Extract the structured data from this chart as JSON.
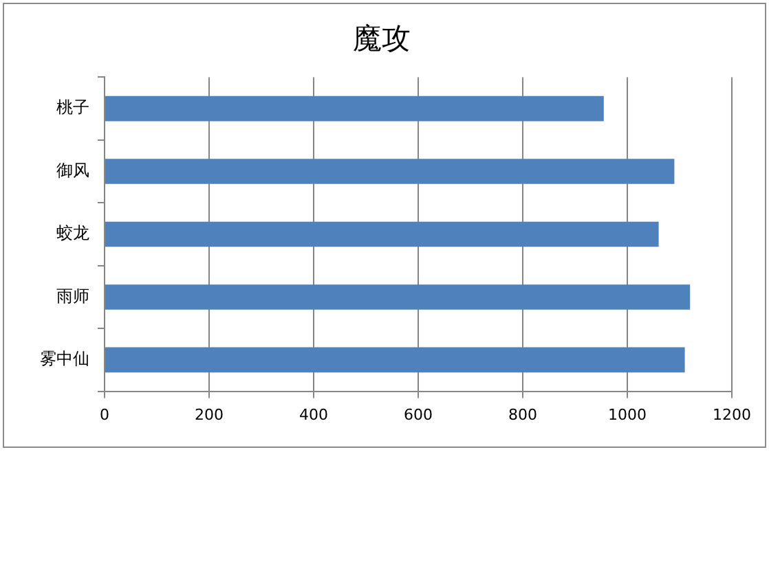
{
  "chart_data": {
    "type": "bar",
    "orientation": "horizontal",
    "title": "魔攻",
    "categories": [
      "桃子",
      "御风",
      "蛟龙",
      "雨师",
      "雾中仙"
    ],
    "values": [
      955,
      1090,
      1060,
      1120,
      1110
    ],
    "color": "#4f81bd",
    "xlim": [
      0,
      1200
    ],
    "xticks": [
      0,
      200,
      400,
      600,
      800,
      1000,
      1200
    ],
    "grid": "x"
  }
}
